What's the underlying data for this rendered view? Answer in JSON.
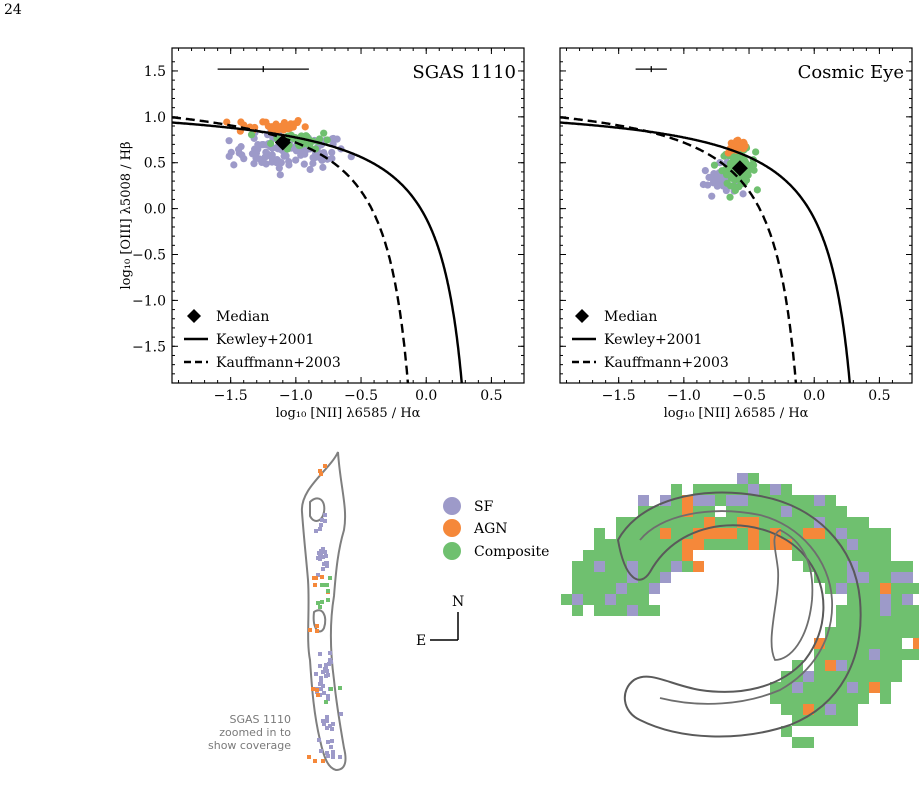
{
  "page_number": "24",
  "colors": {
    "sf": "#9d9ac9",
    "agn": "#f5883a",
    "composite": "#6fc06f",
    "contour": "#7f7f7f",
    "outline": "#505050"
  },
  "map_legend": {
    "sf": "SF",
    "agn": "AGN",
    "composite": "Composite"
  },
  "compass": {
    "north": "N",
    "east": "E"
  },
  "sgas_note": [
    "SGAS 1110",
    "zoomed in to",
    "show coverage"
  ],
  "chart_data": [
    {
      "type": "scatter",
      "title": "SGAS 1110",
      "xlabel": "log₁₀ [NII] λ6585 / Hα",
      "ylabel": "log₁₀ [OIII] λ5008 / Hβ",
      "xlim": [
        -1.95,
        0.75
      ],
      "ylim": [
        -1.9,
        1.75
      ],
      "xticks": [
        -1.5,
        -1.0,
        -0.5,
        0.0,
        0.5
      ],
      "xtick_labels": [
        "−1.5",
        "−1.0",
        "−0.5",
        "0.0",
        "0.5"
      ],
      "yticks": [
        1.5,
        1.0,
        0.5,
        0.0,
        -0.5,
        -1.0,
        -1.5
      ],
      "ytick_labels": [
        "1.5",
        "1.0",
        "0.5",
        "0.0",
        "−0.5",
        "−1.0",
        "−1.5"
      ],
      "legend": [
        "Median",
        "Kewley+2001",
        "Kauffmann+2003"
      ],
      "median": [
        -1.1,
        0.72
      ],
      "error_bar": {
        "x": -1.25,
        "y": 1.52,
        "xerr": 0.35
      },
      "clusters": [
        {
          "class": "sf",
          "cx": -1.05,
          "cy": 0.62,
          "sx": 0.28,
          "sy": 0.12,
          "n": 110
        },
        {
          "class": "agn",
          "cx": -1.2,
          "cy": 0.9,
          "sx": 0.18,
          "sy": 0.05,
          "n": 35
        },
        {
          "class": "composite",
          "cx": -0.95,
          "cy": 0.75,
          "sx": 0.14,
          "sy": 0.06,
          "n": 40
        }
      ]
    },
    {
      "type": "scatter",
      "title": "Cosmic Eye",
      "xlabel": "log₁₀ [NII] λ6585 / Hα",
      "ylabel": "",
      "xlim": [
        -1.95,
        0.75
      ],
      "ylim": [
        -1.9,
        1.75
      ],
      "xticks": [
        -1.5,
        -1.0,
        -0.5,
        0.0,
        0.5
      ],
      "xtick_labels": [
        "−1.5",
        "−1.0",
        "−0.5",
        "0.0",
        "0.5"
      ],
      "yticks": [
        1.5,
        1.0,
        0.5,
        0.0,
        -0.5,
        -1.0,
        -1.5
      ],
      "ytick_labels": [],
      "legend": [
        "Median",
        "Kewley+2001",
        "Kauffmann+2003"
      ],
      "median": [
        -0.57,
        0.44
      ],
      "error_bar": {
        "x": -1.25,
        "y": 1.52,
        "xerr": 0.12
      },
      "clusters": [
        {
          "class": "sf",
          "cx": -0.72,
          "cy": 0.32,
          "sx": 0.08,
          "sy": 0.1,
          "n": 45
        },
        {
          "class": "composite",
          "cx": -0.58,
          "cy": 0.45,
          "sx": 0.08,
          "sy": 0.12,
          "n": 95
        },
        {
          "class": "agn",
          "cx": -0.58,
          "cy": 0.68,
          "sx": 0.05,
          "sy": 0.05,
          "n": 30
        }
      ]
    }
  ]
}
